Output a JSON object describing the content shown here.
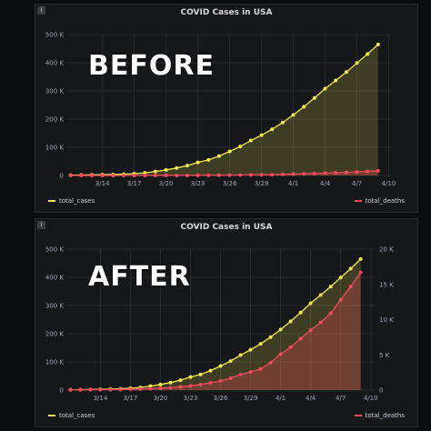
{
  "colors": {
    "cases": "#f2e94e",
    "deaths": "#f2495c",
    "grid": "#2a2b2e"
  },
  "overlays": {
    "before": "BEFORE",
    "after": "AFTER"
  },
  "info_icon": "i",
  "chart_data": [
    {
      "type": "line",
      "title": "COVID Cases in USA",
      "x_ticks": [
        "3/14",
        "3/17",
        "3/20",
        "3/23",
        "3/26",
        "3/29",
        "4/1",
        "4/4",
        "4/7",
        "4/10"
      ],
      "x": [
        "3/11",
        "3/12",
        "3/13",
        "3/14",
        "3/15",
        "3/16",
        "3/17",
        "3/18",
        "3/19",
        "3/20",
        "3/21",
        "3/22",
        "3/23",
        "3/24",
        "3/25",
        "3/26",
        "3/27",
        "3/28",
        "3/29",
        "3/30",
        "3/31",
        "4/1",
        "4/2",
        "4/3",
        "4/4",
        "4/5",
        "4/6",
        "4/7",
        "4/8",
        "4/9"
      ],
      "y_ticks": [
        "0",
        "100 K",
        "200 K",
        "300 K",
        "400 K",
        "500 K"
      ],
      "ylim": [
        0,
        500000
      ],
      "series": [
        {
          "name": "total_cases",
          "axis": "left",
          "values": [
            1300,
            1700,
            2200,
            2700,
            3500,
            4600,
            6400,
            9300,
            14000,
            19600,
            26800,
            35200,
            46500,
            55200,
            69000,
            85400,
            103000,
            124000,
            143000,
            164000,
            188000,
            215000,
            244000,
            275000,
            308000,
            337000,
            367000,
            399000,
            431000,
            465000
          ]
        },
        {
          "name": "total_deaths",
          "axis": "left",
          "values": [
            37,
            41,
            48,
            57,
            68,
            86,
            108,
            150,
            205,
            260,
            340,
            470,
            590,
            790,
            1040,
            1300,
            1690,
            2190,
            2580,
            3000,
            3900,
            5100,
            6100,
            7300,
            8500,
            9600,
            10900,
            12800,
            14700,
            16700
          ]
        }
      ],
      "legend": [
        "total_cases",
        "total_deaths"
      ],
      "grid": true,
      "legend_position": "bottom"
    },
    {
      "type": "line",
      "title": "COVID Cases in USA",
      "x_ticks": [
        "3/14",
        "3/17",
        "3/20",
        "3/23",
        "3/26",
        "3/29",
        "4/1",
        "4/4",
        "4/7",
        "4/10"
      ],
      "x": [
        "3/11",
        "3/12",
        "3/13",
        "3/14",
        "3/15",
        "3/16",
        "3/17",
        "3/18",
        "3/19",
        "3/20",
        "3/21",
        "3/22",
        "3/23",
        "3/24",
        "3/25",
        "3/26",
        "3/27",
        "3/28",
        "3/29",
        "3/30",
        "3/31",
        "4/1",
        "4/2",
        "4/3",
        "4/4",
        "4/5",
        "4/6",
        "4/7",
        "4/8",
        "4/9"
      ],
      "y_ticks": [
        "0",
        "100 K",
        "200 K",
        "300 K",
        "400 K",
        "500 K"
      ],
      "y2_ticks": [
        "0",
        "5 K",
        "10 K",
        "15 K",
        "20 K"
      ],
      "ylim": [
        0,
        500000
      ],
      "y2lim": [
        0,
        20000
      ],
      "series": [
        {
          "name": "total_cases",
          "axis": "left",
          "values": [
            1300,
            1700,
            2200,
            2700,
            3500,
            4600,
            6400,
            9300,
            14000,
            19600,
            26800,
            35200,
            46500,
            55200,
            69000,
            85400,
            103000,
            124000,
            143000,
            164000,
            188000,
            215000,
            244000,
            275000,
            308000,
            337000,
            367000,
            399000,
            431000,
            465000
          ]
        },
        {
          "name": "total_deaths",
          "axis": "right",
          "values": [
            37,
            41,
            48,
            57,
            68,
            86,
            108,
            150,
            205,
            260,
            340,
            470,
            590,
            790,
            1040,
            1300,
            1690,
            2190,
            2580,
            3000,
            3900,
            5100,
            6100,
            7300,
            8500,
            9600,
            10900,
            12800,
            14700,
            16700
          ]
        }
      ],
      "legend": [
        "total_cases",
        "total_deaths"
      ],
      "grid": true,
      "legend_position": "bottom"
    }
  ]
}
